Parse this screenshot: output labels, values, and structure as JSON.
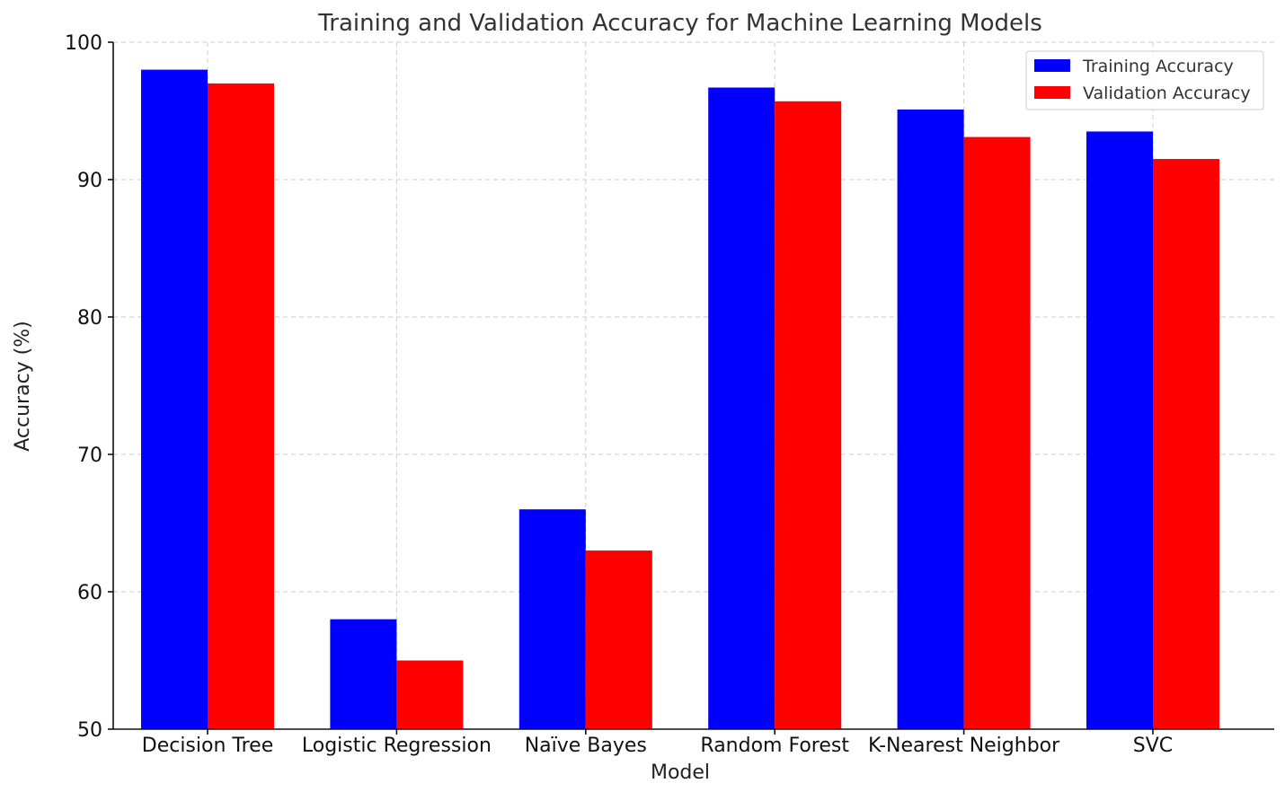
{
  "chart_data": {
    "type": "bar",
    "title": "Training and Validation Accuracy for Machine Learning Models",
    "xlabel": "Model",
    "ylabel": "Accuracy (%)",
    "categories": [
      "Decision Tree",
      "Logistic Regression",
      "Naïve Bayes",
      "Random Forest",
      "K-Nearest Neighbor",
      "SVC"
    ],
    "series": [
      {
        "name": "Training Accuracy",
        "color": "#0000ff",
        "values": [
          98,
          58,
          66,
          96.7,
          95.1,
          93.5
        ]
      },
      {
        "name": "Validation Accuracy",
        "color": "#ff0000",
        "values": [
          97,
          55,
          63,
          95.7,
          93.1,
          91.5
        ]
      }
    ],
    "ylim": [
      50,
      100
    ],
    "yticks": [
      50,
      60,
      70,
      80,
      90,
      100
    ],
    "grid": true,
    "legend_position": "top-right"
  }
}
